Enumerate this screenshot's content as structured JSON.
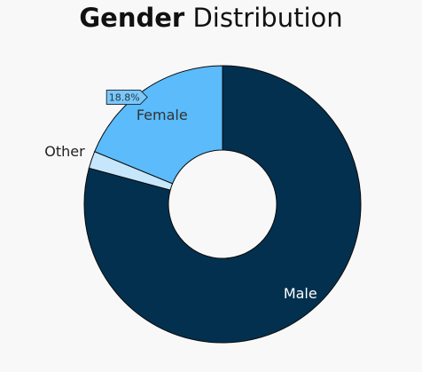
{
  "chart_data": {
    "type": "pie",
    "donut": true,
    "title_bold": "Gender",
    "title_regular": "Distribution",
    "categories": [
      "Male",
      "Other",
      "Female"
    ],
    "values": [
      79.2,
      2.0,
      18.8
    ],
    "unit": "%",
    "colors": {
      "Male": "#03304f",
      "Other": "#c6e6fb",
      "Female": "#5bbbfb"
    },
    "label_colors": {
      "Male": "#ffffff",
      "Other": "#222222",
      "Female": "#333333"
    },
    "highlighted_label": "18.8%",
    "highlighted_category": "Female",
    "legend": "none"
  }
}
